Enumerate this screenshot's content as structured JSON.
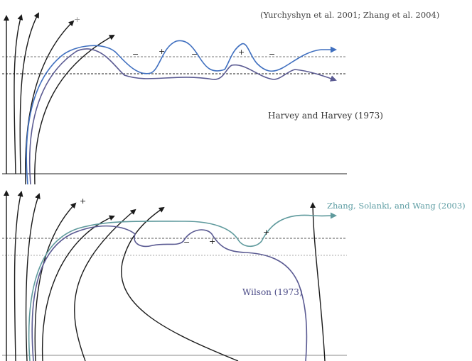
{
  "top_panel": {
    "citation": "(Yurchyshyn et al. 2001; Zhang et al. 2004)",
    "label": "Harvey and Harvey (1973)",
    "signs": [
      "+",
      "−",
      "+",
      "−",
      "+",
      "−"
    ]
  },
  "bottom_panel": {
    "label_zhang": "Zhang, Solanki, and Wang (2003)",
    "label_wilson": "Wilson (1973)",
    "signs": [
      "+",
      "−",
      "+",
      "+"
    ]
  },
  "colors": {
    "field_line": "#1a1a1a",
    "blue_loop": "#3f6fbf",
    "purple_loop": "#5a5a92",
    "teal_loop": "#5f9a9d",
    "dashed_line": "#555555"
  }
}
